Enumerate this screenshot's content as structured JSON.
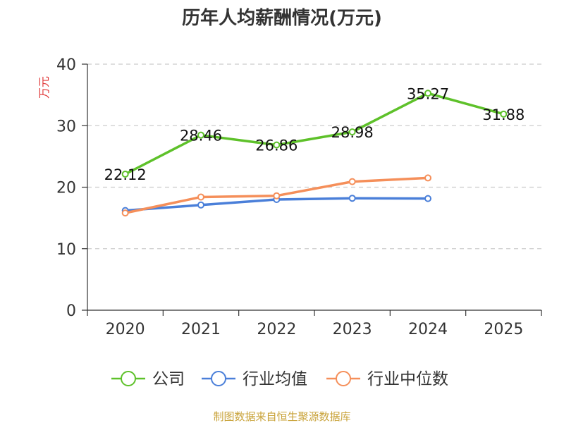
{
  "chart_data": {
    "type": "line",
    "title": "历年人均薪酬情况(万元)",
    "ylabel": "万元",
    "xlabel": "",
    "categories": [
      "2020",
      "2021",
      "2022",
      "2023",
      "2024",
      "2025"
    ],
    "ylim": [
      0,
      40
    ],
    "yticks": [
      0,
      10,
      20,
      30,
      40
    ],
    "grid": true,
    "legend_position": "bottom",
    "series": [
      {
        "name": "公司",
        "color": "#5ec12a",
        "values": [
          22.12,
          28.46,
          26.86,
          28.98,
          35.27,
          31.88
        ],
        "labels": [
          "22.12",
          "28.46",
          "26.86",
          "28.98",
          "35.27",
          "31.88"
        ]
      },
      {
        "name": "行业均值",
        "color": "#4a7fd9",
        "values": [
          16.2,
          17.1,
          18.0,
          18.2,
          18.15,
          null
        ]
      },
      {
        "name": "行业中位数",
        "color": "#f58f5a",
        "values": [
          15.8,
          18.4,
          18.6,
          20.9,
          21.5,
          null
        ]
      }
    ]
  },
  "source": "制图数据来自恒生聚源数据库",
  "colors": {
    "axis_label": "#e03a3a",
    "source": "#c9a33a",
    "grid": "#cccccc",
    "axis": "#333333"
  }
}
